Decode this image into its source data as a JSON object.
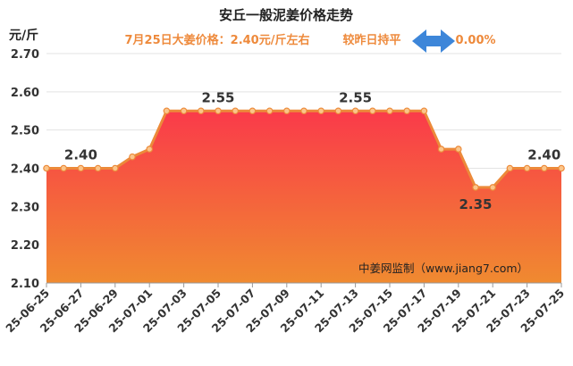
{
  "header": {
    "title": "安丘一般泥姜价格走势",
    "price_text": "7月25日大姜价格：2.40元/斤左右",
    "compare_text": "较昨日持平",
    "change_percent": "0.00%",
    "change_icon": "left-right-arrow-icon",
    "accent_color": "#ee8a3c",
    "arrow_color": "#3d86d9"
  },
  "watermark": "中姜网监制（www.jiang7.com）",
  "chart_data": {
    "type": "area",
    "title": "安丘一般泥姜价格走势",
    "ylabel": "元/斤",
    "ylim": [
      2.1,
      2.7
    ],
    "yticks": [
      "2.10",
      "2.20",
      "2.30",
      "2.40",
      "2.50",
      "2.60",
      "2.70"
    ],
    "grid": true,
    "x_tick_labels": [
      "25-06-25",
      "25-06-27",
      "25-06-29",
      "25-07-01",
      "25-07-03",
      "25-07-05",
      "25-07-07",
      "25-07-09",
      "25-07-11",
      "25-07-13",
      "25-07-15",
      "25-07-17",
      "25-07-19",
      "25-07-21",
      "25-07-23",
      "25-07-25"
    ],
    "x": [
      "25-06-25",
      "25-06-26",
      "25-06-27",
      "25-06-28",
      "25-06-29",
      "25-06-30",
      "25-07-01",
      "25-07-02",
      "25-07-03",
      "25-07-04",
      "25-07-05",
      "25-07-06",
      "25-07-07",
      "25-07-08",
      "25-07-09",
      "25-07-10",
      "25-07-11",
      "25-07-12",
      "25-07-13",
      "25-07-14",
      "25-07-15",
      "25-07-16",
      "25-07-17",
      "25-07-18",
      "25-07-19",
      "25-07-20",
      "25-07-21",
      "25-07-22",
      "25-07-23",
      "25-07-24",
      "25-07-25"
    ],
    "series": [
      {
        "values": [
          2.4,
          2.4,
          2.4,
          2.4,
          2.4,
          2.43,
          2.45,
          2.55,
          2.55,
          2.55,
          2.55,
          2.55,
          2.55,
          2.55,
          2.55,
          2.55,
          2.55,
          2.55,
          2.55,
          2.55,
          2.55,
          2.55,
          2.55,
          2.45,
          2.45,
          2.35,
          2.35,
          2.4,
          2.4,
          2.4,
          2.4
        ]
      }
    ],
    "data_labels": [
      {
        "index": 2,
        "text": "2.40"
      },
      {
        "index": 10,
        "text": "2.55"
      },
      {
        "index": 18,
        "text": "2.55"
      },
      {
        "index": 25,
        "text": "2.35"
      },
      {
        "index": 29,
        "text": "2.40"
      }
    ],
    "colors": {
      "line": "#ec8a3a",
      "marker_fill": "#fbc58a",
      "fill_top": "#fa3a4a",
      "fill_bottom": "#f08a30",
      "grid": "#e3e3e3"
    }
  }
}
